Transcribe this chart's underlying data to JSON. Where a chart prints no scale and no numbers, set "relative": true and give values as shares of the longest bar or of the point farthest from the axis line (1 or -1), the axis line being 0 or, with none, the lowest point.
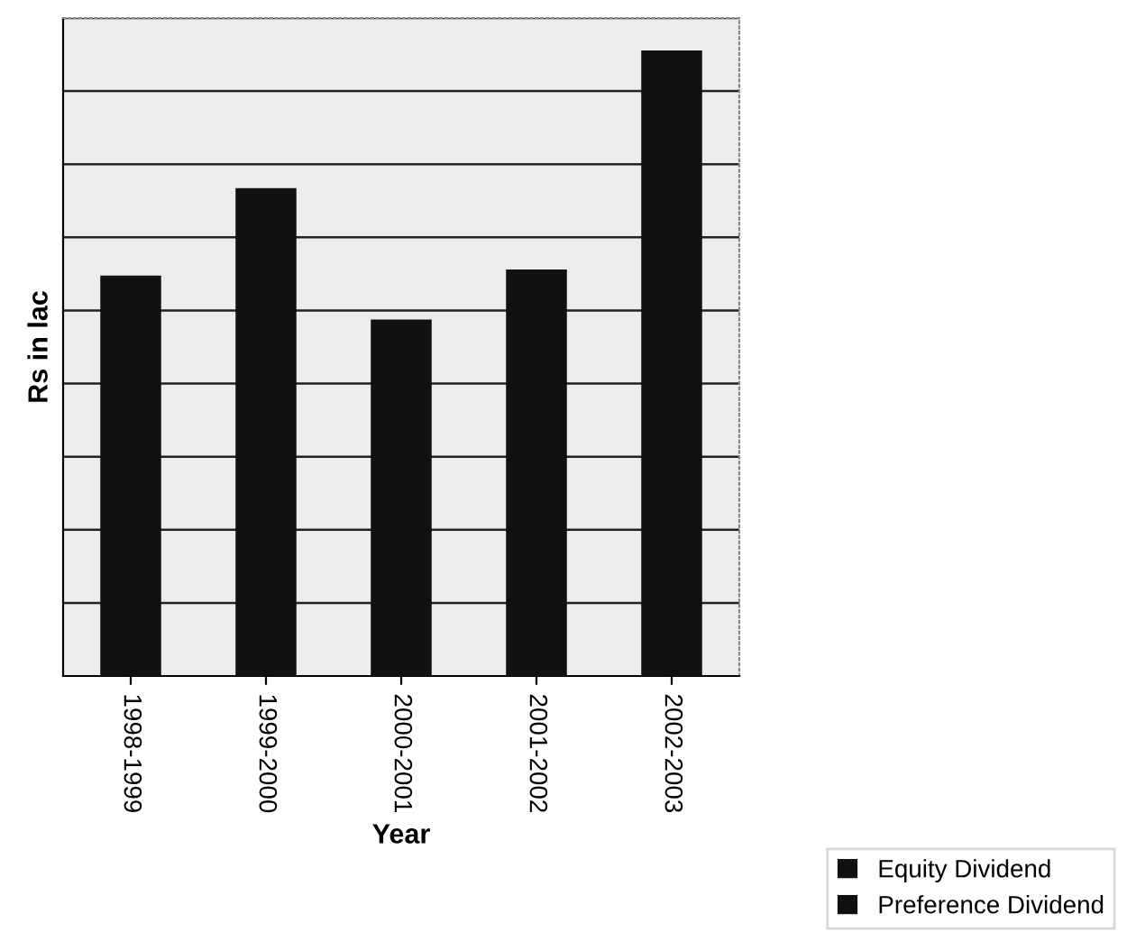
{
  "chart_data": {
    "type": "bar",
    "relative": true,
    "xlabel": "Year",
    "ylabel": "Rs in lac",
    "categories": [
      "1998-1999",
      "1999-2000",
      "2000-2001",
      "2001-2002",
      "2002-2003"
    ],
    "series": [
      {
        "name": "Equity Dividend",
        "color": "#111111",
        "values": [
          0.64,
          0.78,
          0.57,
          0.65,
          1
        ]
      },
      {
        "name": "Preference Dividend",
        "color": "#111111",
        "values": [
          null,
          null,
          null,
          null,
          null
        ]
      }
    ],
    "grid": "y",
    "legend": "bottom right"
  }
}
